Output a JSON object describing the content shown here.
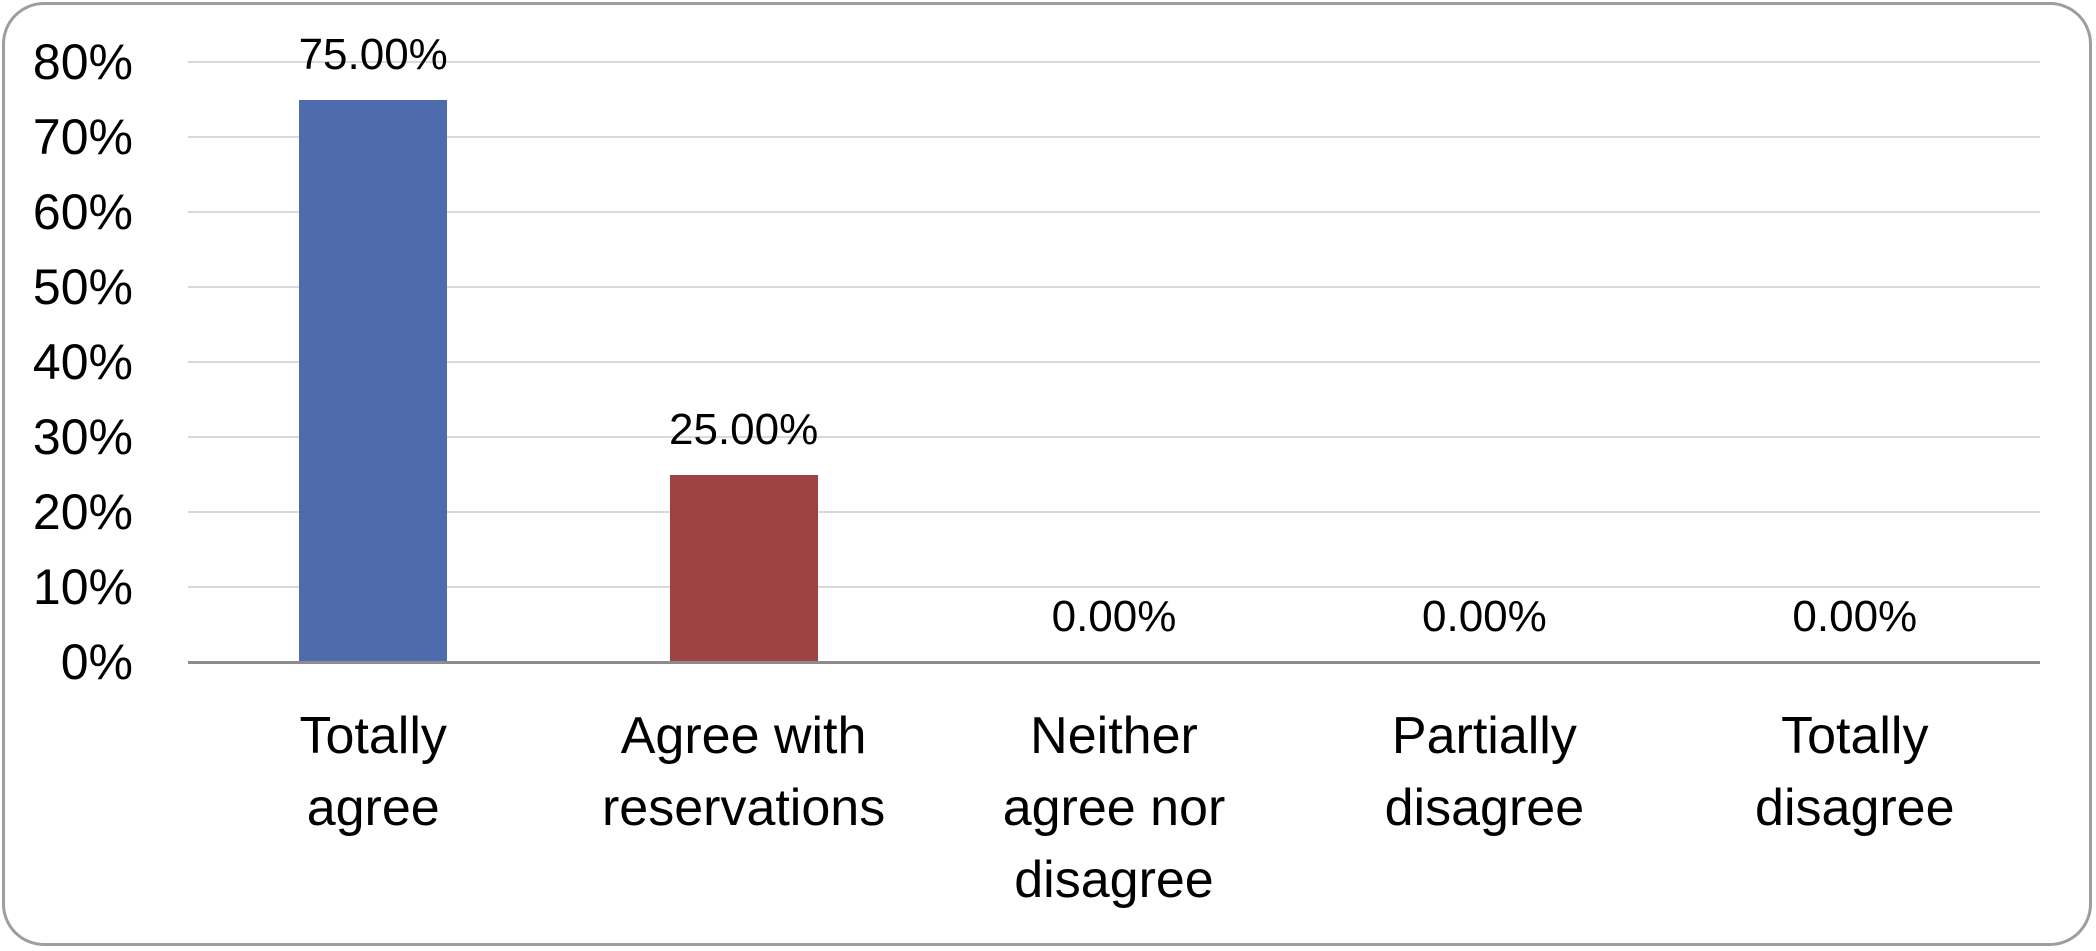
{
  "chart_data": {
    "type": "bar",
    "title": "",
    "xlabel": "",
    "ylabel": "",
    "categories": [
      "Totally agree",
      "Agree with reservations",
      "Neither agree nor disagree",
      "Partially disagree",
      "Totally disagree"
    ],
    "category_display": [
      "Totally\nagree",
      "Agree with\nreservations",
      "Neither\nagree nor\ndisagree",
      "Partially\ndisagree",
      "Totally\ndisagree"
    ],
    "values": [
      75,
      25,
      0,
      0,
      0
    ],
    "value_labels": [
      "75.00%",
      "25.00%",
      "0.00%",
      "0.00%",
      "0.00%"
    ],
    "bar_colors": [
      "#4e6bad",
      "#9e4341",
      "none",
      "none",
      "none"
    ],
    "y_axis": {
      "min": 0,
      "max": 80,
      "step": 10,
      "tick_labels": [
        "0%",
        "10%",
        "20%",
        "30%",
        "40%",
        "50%",
        "60%",
        "70%",
        "80%"
      ]
    },
    "ylim": [
      0,
      80
    ],
    "grid": true,
    "legend": "none",
    "colors": {
      "gridline": "#d9d9d9",
      "axis_line": "#8c8c8c",
      "frame_border": "#9e9e9e",
      "text": "#000000",
      "background": "#ffffff"
    }
  }
}
